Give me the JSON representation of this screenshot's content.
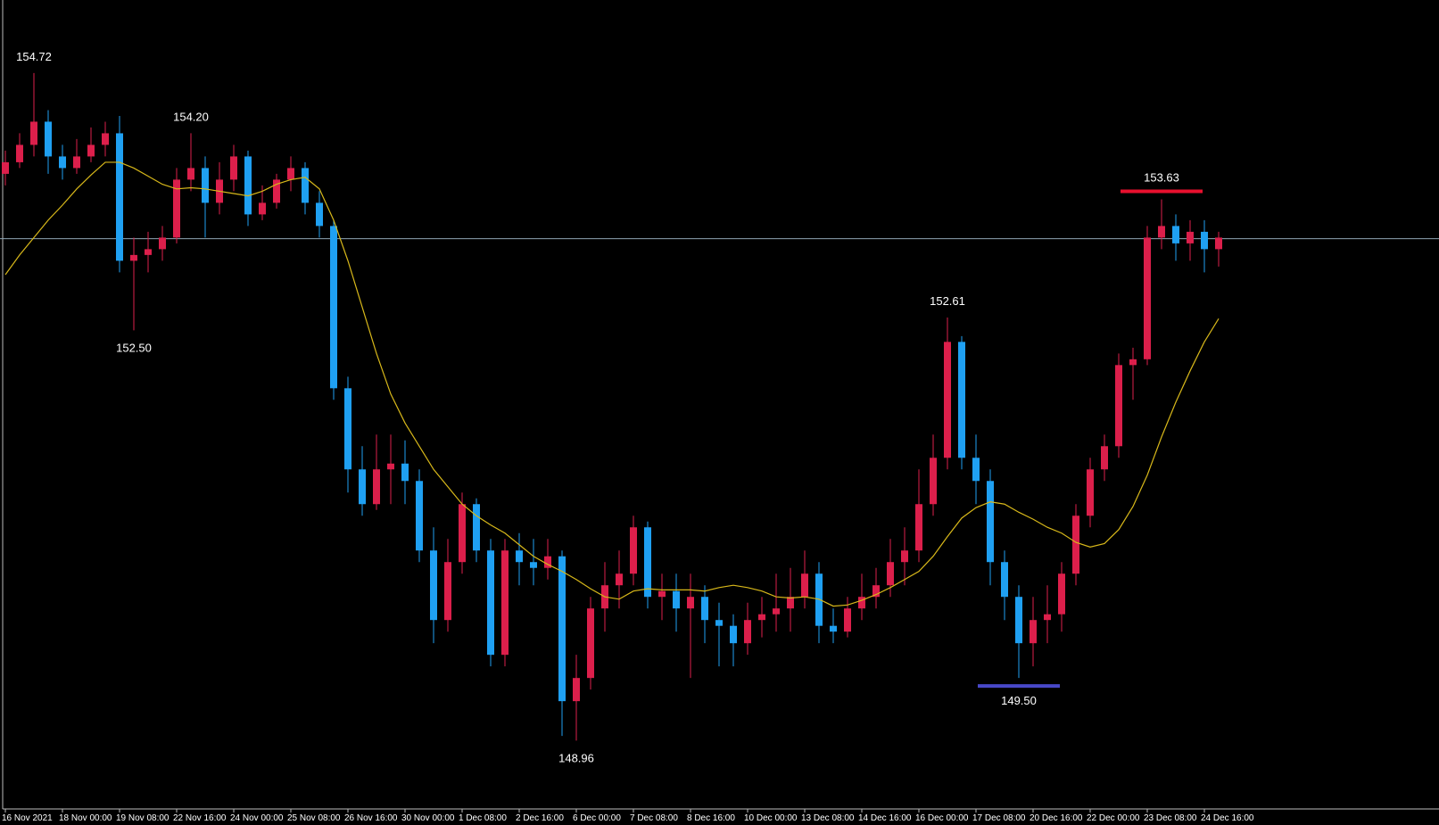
{
  "chart_data": {
    "type": "candlestick",
    "up_color": "#dc1f4b",
    "down_color": "#1fa0f2",
    "ma_color": "#d8b81a",
    "price_line": 153.29,
    "price_line_color": "#8ea4b2",
    "ylim": [
      148.37,
      155.35
    ],
    "categories": [
      "16 Nov 2021",
      null,
      null,
      null,
      "18 Nov 00:00",
      null,
      null,
      null,
      "19 Nov 08:00",
      null,
      null,
      null,
      "22 Nov 16:00",
      null,
      null,
      null,
      "24 Nov 00:00",
      null,
      null,
      null,
      "25 Nov 08:00",
      null,
      null,
      null,
      "26 Nov 16:00",
      null,
      null,
      null,
      "30 Nov 00:00",
      null,
      null,
      null,
      "1 Dec 08:00",
      null,
      null,
      null,
      "2 Dec 16:00",
      null,
      null,
      null,
      "6 Dec 00:00",
      null,
      null,
      null,
      "7 Dec 08:00",
      null,
      null,
      null,
      "8 Dec 16:00",
      null,
      null,
      null,
      "10 Dec 00:00",
      null,
      null,
      null,
      "13 Dec 08:00",
      null,
      null,
      null,
      "14 Dec 16:00",
      null,
      null,
      null,
      "16 Dec 00:00",
      null,
      null,
      null,
      "17 Dec 08:00",
      null,
      null,
      null,
      "20 Dec 16:00",
      null,
      null,
      null,
      "22 Dec 00:00",
      null,
      null,
      null,
      "23 Dec 08:00",
      null,
      null,
      null,
      "24 Dec 16:00",
      null
    ],
    "open": [
      153.85,
      153.95,
      154.1,
      154.3,
      154.0,
      153.9,
      154.0,
      154.1,
      154.2,
      153.1,
      153.15,
      153.2,
      153.3,
      153.8,
      153.9,
      153.6,
      153.8,
      154.0,
      153.5,
      153.6,
      153.8,
      153.9,
      153.6,
      153.4,
      152.0,
      151.3,
      151.0,
      151.3,
      151.35,
      151.2,
      150.6,
      150.0,
      150.5,
      151.0,
      150.6,
      149.7,
      150.6,
      150.5,
      150.45,
      150.55,
      149.3,
      149.5,
      150.1,
      150.3,
      150.4,
      150.8,
      150.2,
      150.25,
      150.1,
      150.2,
      150.0,
      149.95,
      149.8,
      150.0,
      150.05,
      150.1,
      150.2,
      150.4,
      149.95,
      149.9,
      150.1,
      150.2,
      150.3,
      150.5,
      150.6,
      151.0,
      151.4,
      152.4,
      151.4,
      151.2,
      150.5,
      150.2,
      149.8,
      150.0,
      150.05,
      150.4,
      150.9,
      151.3,
      151.5,
      152.2,
      152.25,
      153.3,
      153.4,
      153.25,
      153.35,
      153.2
    ],
    "high": [
      154.05,
      154.2,
      154.72,
      154.4,
      154.1,
      154.15,
      154.25,
      154.3,
      154.35,
      153.3,
      153.35,
      153.4,
      153.9,
      154.2,
      154.0,
      153.95,
      154.1,
      154.05,
      153.75,
      153.85,
      154.0,
      153.95,
      153.7,
      153.45,
      152.1,
      151.5,
      151.6,
      151.6,
      151.55,
      151.3,
      150.8,
      150.7,
      151.1,
      151.05,
      150.7,
      150.7,
      150.75,
      150.7,
      150.7,
      150.6,
      149.7,
      150.2,
      150.5,
      150.6,
      150.9,
      150.85,
      150.4,
      150.4,
      150.4,
      150.3,
      150.15,
      150.05,
      150.15,
      150.2,
      150.4,
      150.45,
      150.6,
      150.5,
      150.1,
      150.2,
      150.4,
      150.45,
      150.7,
      150.8,
      151.3,
      151.6,
      152.61,
      152.45,
      151.6,
      151.3,
      150.6,
      150.3,
      150.2,
      150.3,
      150.5,
      151.0,
      151.4,
      151.6,
      152.3,
      152.35,
      153.4,
      153.63,
      153.5,
      153.45,
      153.45,
      153.35
    ],
    "low": [
      153.75,
      153.9,
      154.0,
      153.85,
      153.8,
      153.85,
      153.95,
      154.0,
      153.0,
      152.5,
      153.0,
      153.1,
      153.25,
      153.7,
      153.3,
      153.5,
      153.7,
      153.4,
      153.45,
      153.55,
      153.7,
      153.5,
      153.3,
      151.9,
      151.1,
      150.9,
      150.95,
      151.0,
      151.0,
      150.5,
      149.8,
      149.9,
      150.4,
      150.5,
      149.6,
      149.6,
      150.3,
      150.3,
      150.35,
      149.0,
      148.96,
      149.4,
      149.9,
      150.1,
      150.3,
      150.1,
      150.0,
      149.9,
      149.5,
      149.8,
      149.6,
      149.6,
      149.7,
      149.85,
      149.9,
      149.9,
      150.1,
      149.8,
      149.8,
      149.85,
      150.0,
      150.1,
      150.2,
      150.3,
      150.5,
      150.9,
      151.3,
      151.3,
      151.0,
      150.3,
      150.0,
      149.5,
      149.6,
      149.8,
      149.9,
      150.3,
      150.8,
      151.2,
      151.4,
      151.9,
      152.2,
      153.2,
      153.1,
      153.1,
      153.0,
      153.05
    ],
    "close": [
      153.95,
      154.1,
      154.3,
      154.0,
      153.9,
      154.0,
      154.1,
      154.2,
      153.1,
      153.15,
      153.2,
      153.3,
      153.8,
      153.9,
      153.6,
      153.8,
      154.0,
      153.5,
      153.6,
      153.8,
      153.9,
      153.6,
      153.4,
      152.0,
      151.3,
      151.0,
      151.3,
      151.35,
      151.2,
      150.6,
      150.0,
      150.5,
      151.0,
      150.6,
      149.7,
      150.6,
      150.5,
      150.45,
      150.55,
      149.3,
      149.5,
      150.1,
      150.3,
      150.4,
      150.8,
      150.2,
      150.25,
      150.1,
      150.2,
      150.0,
      149.95,
      149.8,
      150.0,
      150.05,
      150.1,
      150.2,
      150.4,
      149.95,
      149.9,
      150.1,
      150.2,
      150.3,
      150.5,
      150.6,
      151.0,
      151.4,
      152.4,
      151.4,
      151.2,
      150.5,
      150.2,
      149.8,
      150.0,
      150.05,
      150.4,
      150.9,
      151.3,
      151.5,
      152.2,
      152.25,
      153.3,
      153.4,
      153.25,
      153.35,
      153.2,
      153.3
    ],
    "ma": [
      152.98,
      153.15,
      153.3,
      153.45,
      153.58,
      153.72,
      153.84,
      153.95,
      153.95,
      153.9,
      153.83,
      153.76,
      153.72,
      153.73,
      153.72,
      153.7,
      153.68,
      153.66,
      153.7,
      153.76,
      153.8,
      153.82,
      153.72,
      153.45,
      153.1,
      152.7,
      152.3,
      151.95,
      151.7,
      151.5,
      151.3,
      151.15,
      151.0,
      150.9,
      150.82,
      150.75,
      150.65,
      150.55,
      150.48,
      150.42,
      150.35,
      150.27,
      150.2,
      150.18,
      150.25,
      150.27,
      150.26,
      150.26,
      150.26,
      150.25,
      150.28,
      150.3,
      150.28,
      150.25,
      150.2,
      150.19,
      150.2,
      150.18,
      150.12,
      150.13,
      150.17,
      150.22,
      150.28,
      150.35,
      150.42,
      150.55,
      150.72,
      150.88,
      150.97,
      151.02,
      151.0,
      150.93,
      150.87,
      150.8,
      150.75,
      150.67,
      150.63,
      150.66,
      150.78,
      150.98,
      151.25,
      151.58,
      151.88,
      152.15,
      152.4,
      152.6
    ],
    "annotations": [
      {
        "value": 154.72,
        "label": "154.72",
        "index": 2
      },
      {
        "value": 154.2,
        "label": "154.20",
        "index": 13
      },
      {
        "value": 152.5,
        "label": "152.50",
        "index": 9
      },
      {
        "value": 148.96,
        "label": "148.96",
        "index": 40
      },
      {
        "value": 152.61,
        "label": "152.61",
        "index": 66
      },
      {
        "value": 149.5,
        "label": "149.50",
        "index": 71,
        "color": "#4848c8"
      },
      {
        "value": 153.63,
        "label": "153.63",
        "index": 81,
        "color": "#e8102e"
      }
    ]
  }
}
